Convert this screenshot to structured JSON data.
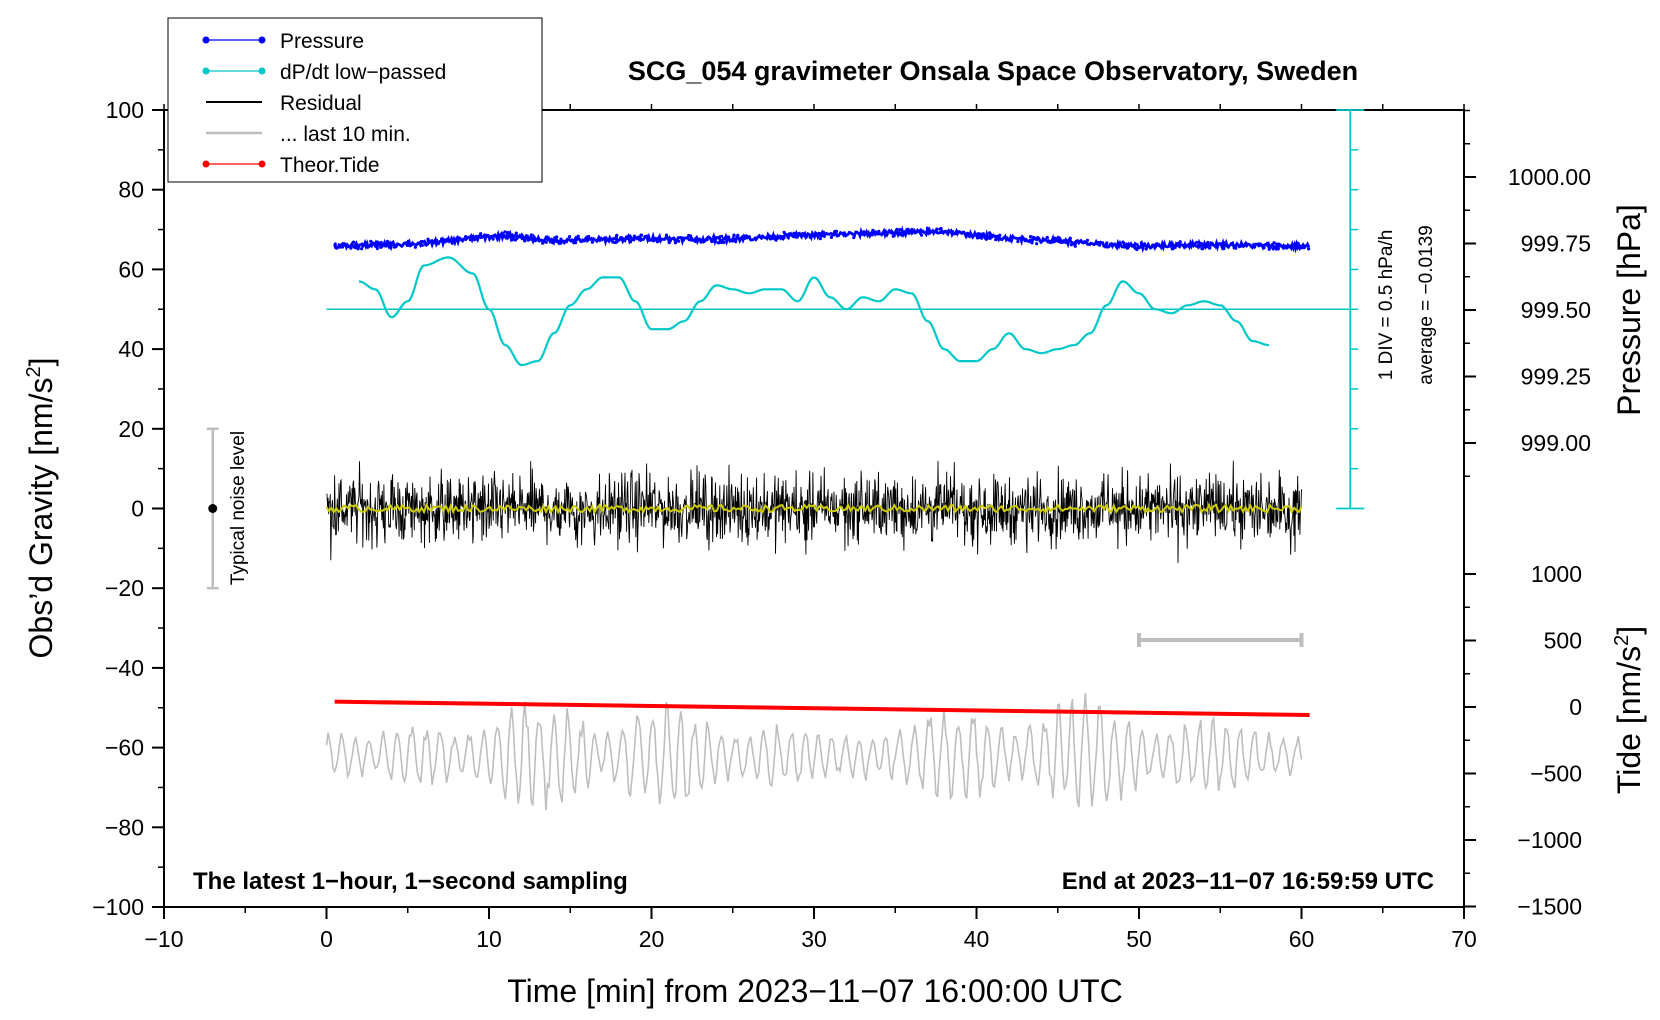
{
  "chart_data": {
    "type": "line",
    "title": "SCG_054 gravimeter Onsala Space Observatory, Sweden",
    "xlabel": "Time [min] from 2023−11−07 16:00:00 UTC",
    "ylabel_left": "Obs’d Gravity [nm/s",
    "ylabel_left_sup": "2",
    "ylabel_left_end": "]",
    "ylabel_right_top": "Pressure [hPa]",
    "ylabel_right_bottom": "Tide [nm/s",
    "ylabel_right_bottom_sup": "2",
    "ylabel_right_bottom_end": "]",
    "xlim": [
      -10,
      70
    ],
    "ylim": [
      -100,
      100
    ],
    "xticks": [
      -10,
      0,
      10,
      20,
      30,
      40,
      50,
      60,
      70
    ],
    "xtick_labels": [
      "−10",
      "0",
      "10",
      "20",
      "30",
      "40",
      "50",
      "60",
      "70"
    ],
    "yticks": [
      -100,
      -80,
      -60,
      -40,
      -20,
      0,
      20,
      40,
      60,
      80,
      100
    ],
    "ytick_labels": [
      "−100",
      "−80",
      "−60",
      "−40",
      "−20",
      "0",
      "20",
      "40",
      "60",
      "80",
      "100"
    ],
    "pressure_ticks": [
      999.0,
      999.25,
      999.5,
      999.75,
      1000.0
    ],
    "pressure_tick_labels": [
      "999.00",
      "999.25",
      "999.50",
      "999.75",
      "1000.00"
    ],
    "tide_ticks": [
      -1500,
      -1000,
      -500,
      0,
      500,
      1000
    ],
    "tide_tick_labels": [
      "−1500",
      "−1000",
      "−500",
      "0",
      "500",
      "1000"
    ],
    "legend": [
      {
        "label": "Pressure",
        "color": "#0000ff",
        "marker": "dot"
      },
      {
        "label": "dP/dt low−passed",
        "color": "#00c8c8",
        "marker": "dot"
      },
      {
        "label": "Residual",
        "color": "#000000",
        "marker": "line"
      },
      {
        "label": "... last 10 min.",
        "color": "#bebebe",
        "marker": "line"
      },
      {
        "label": "Theor.Tide",
        "color": "#ff0000",
        "marker": "dot"
      }
    ],
    "noise_label": "Typical noise level",
    "noise_range": [
      -20,
      20
    ],
    "dpdt_scale_label": "1 DIV = 0.5 hPa/h",
    "dpdt_average_label": "average = −0.0139",
    "note_left": "The latest 1−hour, 1−second sampling",
    "note_right": "End at 2023−11−07 16:59:59 UTC",
    "series": [
      {
        "name": "Pressure",
        "axis": "pressure",
        "color": "#0000ff",
        "x": [
          0.5,
          3,
          6,
          9,
          11,
          14,
          17,
          20,
          23,
          26,
          29,
          32,
          35,
          38,
          40,
          42,
          45,
          48,
          50,
          53,
          56,
          58,
          60.5
        ],
        "values": [
          999.74,
          999.745,
          999.75,
          999.77,
          999.78,
          999.76,
          999.765,
          999.77,
          999.765,
          999.77,
          999.78,
          999.785,
          999.79,
          999.795,
          999.78,
          999.77,
          999.76,
          999.745,
          999.74,
          999.745,
          999.745,
          999.74,
          999.74
        ]
      },
      {
        "name": "dP/dt low-passed",
        "axis": "left",
        "color": "#00c8c8",
        "baseline": 50,
        "x": [
          2,
          3,
          4,
          5,
          6,
          7.5,
          9,
          10,
          11,
          12,
          13,
          14,
          15,
          16,
          17,
          18,
          19,
          20,
          21,
          22,
          23,
          24,
          25,
          26,
          27,
          28,
          29,
          30,
          31,
          32,
          33,
          34,
          35,
          36,
          37,
          38,
          39,
          40,
          41,
          42,
          43,
          44,
          45,
          46,
          47,
          48,
          49,
          50,
          51,
          52,
          53,
          54,
          55,
          56,
          57,
          58
        ],
        "values": [
          57,
          55,
          48,
          52,
          61,
          63,
          59,
          50,
          41,
          36,
          37,
          44,
          51,
          55,
          58,
          58,
          52,
          45,
          45,
          47,
          52,
          56,
          55,
          54,
          55,
          55,
          52,
          58,
          53,
          50,
          53,
          52,
          55,
          54,
          47,
          40,
          37,
          37,
          40,
          44,
          40,
          39,
          40,
          41,
          44,
          51,
          57,
          54,
          50,
          49,
          51,
          52,
          51,
          47,
          42,
          41
        ]
      },
      {
        "name": "Residual",
        "axis": "left",
        "color": "#000000",
        "x_range": [
          0,
          60
        ],
        "amplitude": 12,
        "mean": 0
      },
      {
        "name": "Residual smoothed",
        "axis": "left",
        "color": "#cccc00",
        "x_range": [
          0,
          60
        ],
        "mean": 0
      },
      {
        "name": "... last 10 min.",
        "axis": "left",
        "color": "#bebebe",
        "x_range": [
          0,
          60
        ],
        "mean": -62,
        "amplitude": 12
      },
      {
        "name": "Theor.Tide",
        "axis": "tide",
        "color": "#ff0000",
        "x": [
          0.5,
          60.5
        ],
        "values": [
          40,
          -60
        ]
      }
    ],
    "scale_bar_x": [
      50,
      60
    ]
  },
  "colors": {
    "pressure": "#0000ff",
    "dpdt": "#00c8c8",
    "residual": "#000000",
    "smooth": "#cccc00",
    "last10": "#bebebe",
    "tide": "#ff0000"
  }
}
